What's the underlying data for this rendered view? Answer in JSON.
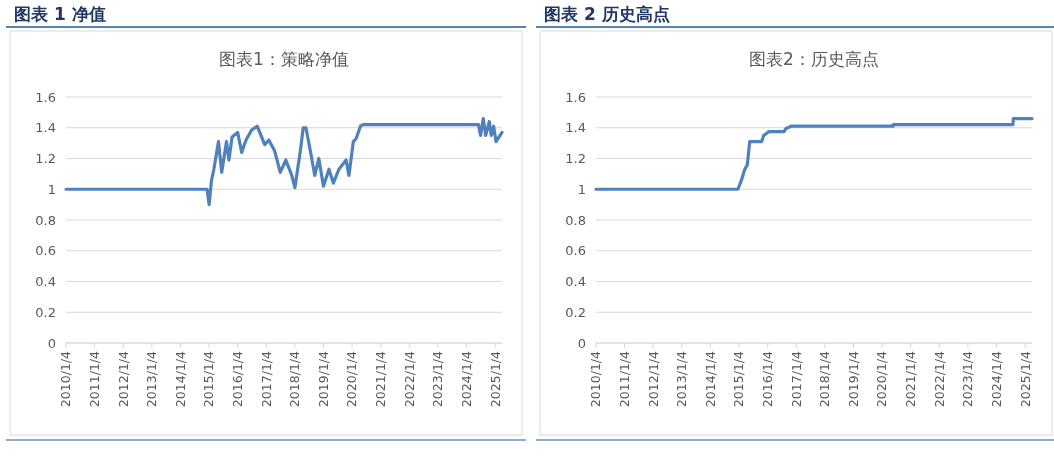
{
  "chart_data": [
    {
      "type": "line",
      "title": "图表 1 净值",
      "subtitle": "图表1：策略净值",
      "x": [
        "2010-01-04",
        "2014-12-10",
        "2015-01-05",
        "2015-02-05",
        "2015-03-05",
        "2015-05-05",
        "2015-06-15",
        "2015-08-15",
        "2015-09-15",
        "2015-10-25",
        "2016-01-04",
        "2016-02-25",
        "2016-04-20",
        "2016-07-01",
        "2016-09-10",
        "2016-12-15",
        "2017-02-05",
        "2017-04-20",
        "2017-07-01",
        "2017-09-10",
        "2017-11-25",
        "2018-01-04",
        "2018-03-15",
        "2018-04-20",
        "2018-05-25",
        "2018-07-20",
        "2018-09-15",
        "2018-11-05",
        "2019-01-04",
        "2019-03-15",
        "2019-05-10",
        "2019-07-20",
        "2019-10-20",
        "2019-11-25",
        "2020-01-20",
        "2020-02-25",
        "2020-04-20",
        "2020-05-25",
        "2024-06-05",
        "2024-07-01",
        "2024-08-05",
        "2024-09-05",
        "2024-10-20",
        "2024-11-15",
        "2024-12-15",
        "2025-01-15",
        "2025-04-01"
      ],
      "series": [
        {
          "color": "#4f81bd",
          "values": [
            1,
            1,
            0.9,
            1.06,
            1.125,
            1.31,
            1.11,
            1.31,
            1.19,
            1.34,
            1.37,
            1.24,
            1.32,
            1.385,
            1.41,
            1.29,
            1.32,
            1.25,
            1.11,
            1.19,
            1.09,
            1.01,
            1.25,
            1.4,
            1.4,
            1.25,
            1.09,
            1.2,
            1.02,
            1.13,
            1.04,
            1.13,
            1.19,
            1.09,
            1.31,
            1.33,
            1.41,
            1.42,
            1.42,
            1.35,
            1.46,
            1.35,
            1.44,
            1.35,
            1.41,
            1.31,
            1.37
          ]
        }
      ],
      "xlim": [
        "2010-01-04",
        "2025-04-01"
      ],
      "xticks": [
        {
          "value": "2010-01-04",
          "label": "2010/1/4"
        },
        {
          "value": "2011-01-04",
          "label": "2011/1/4"
        },
        {
          "value": "2012-01-04",
          "label": "2012/1/4"
        },
        {
          "value": "2013-01-04",
          "label": "2013/1/4"
        },
        {
          "value": "2014-01-04",
          "label": "2014/1/4"
        },
        {
          "value": "2015-01-04",
          "label": "2015/1/4"
        },
        {
          "value": "2016-01-04",
          "label": "2016/1/4"
        },
        {
          "value": "2017-01-04",
          "label": "2017/1/4"
        },
        {
          "value": "2018-01-04",
          "label": "2018/1/4"
        },
        {
          "value": "2019-01-04",
          "label": "2019/1/4"
        },
        {
          "value": "2020-01-04",
          "label": "2020/1/4"
        },
        {
          "value": "2021-01-04",
          "label": "2021/1/4"
        },
        {
          "value": "2022-01-04",
          "label": "2022/1/4"
        },
        {
          "value": "2023-01-04",
          "label": "2023/1/4"
        },
        {
          "value": "2024-01-04",
          "label": "2024/1/4"
        },
        {
          "value": "2025-01-04",
          "label": "2025/1/4"
        }
      ],
      "ylim": [
        0,
        1.6
      ],
      "yticks": [
        0,
        0.2,
        0.4,
        0.6,
        0.8,
        1,
        1.2,
        1.4,
        1.6
      ],
      "grid": "y",
      "marker": "none",
      "line_style": "solid"
    },
    {
      "type": "line",
      "title": "图表 2 历史高点",
      "subtitle": "图表2：历史高点",
      "x": [
        "2010-01-04",
        "2014-12-20",
        "2015-02-05",
        "2015-03-15",
        "2015-04-20",
        "2015-05-20",
        "2015-10-20",
        "2015-11-15",
        "2016-01-20",
        "2016-08-01",
        "2016-08-25",
        "2016-10-30",
        "2020-05-25",
        "2020-05-26",
        "2024-08-01",
        "2024-08-05",
        "2025-04-01"
      ],
      "series": [
        {
          "color": "#4f81bd",
          "values": [
            1,
            1,
            1.06,
            1.125,
            1.16,
            1.31,
            1.31,
            1.35,
            1.375,
            1.375,
            1.395,
            1.41,
            1.41,
            1.42,
            1.42,
            1.46,
            1.46
          ]
        }
      ],
      "xlim": [
        "2010-01-04",
        "2025-04-01"
      ],
      "xticks": [
        {
          "value": "2010-01-04",
          "label": "2010/1/4"
        },
        {
          "value": "2011-01-04",
          "label": "2011/1/4"
        },
        {
          "value": "2012-01-04",
          "label": "2012/1/4"
        },
        {
          "value": "2013-01-04",
          "label": "2013/1/4"
        },
        {
          "value": "2014-01-04",
          "label": "2014/1/4"
        },
        {
          "value": "2015-01-04",
          "label": "2015/1/4"
        },
        {
          "value": "2016-01-04",
          "label": "2016/1/4"
        },
        {
          "value": "2017-01-04",
          "label": "2017/1/4"
        },
        {
          "value": "2018-01-04",
          "label": "2018/1/4"
        },
        {
          "value": "2019-01-04",
          "label": "2019/1/4"
        },
        {
          "value": "2020-01-04",
          "label": "2020/1/4"
        },
        {
          "value": "2021-01-04",
          "label": "2021/1/4"
        },
        {
          "value": "2022-01-04",
          "label": "2022/1/4"
        },
        {
          "value": "2023-01-04",
          "label": "2023/1/4"
        },
        {
          "value": "2024-01-04",
          "label": "2024/1/4"
        },
        {
          "value": "2025-01-04",
          "label": "2025/1/4"
        }
      ],
      "ylim": [
        0,
        1.6
      ],
      "yticks": [
        0,
        0.2,
        0.4,
        0.6,
        0.8,
        1,
        1.2,
        1.4,
        1.6
      ],
      "grid": "y",
      "marker": "none",
      "line_style": "solid"
    }
  ]
}
